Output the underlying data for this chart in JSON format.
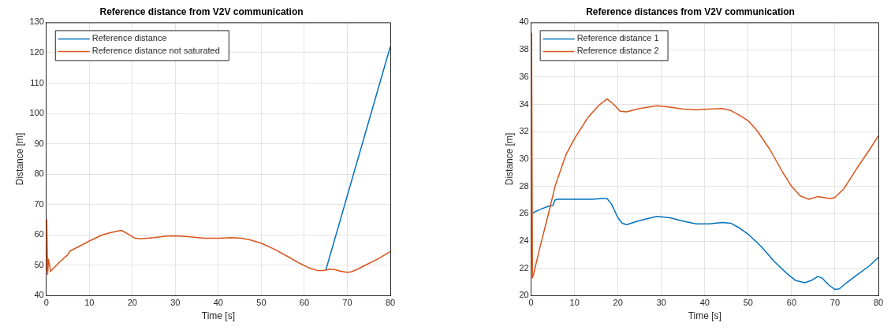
{
  "chart_data": [
    {
      "type": "line",
      "title": "Reference distance from V2V communication",
      "xlabel": "Time [s]",
      "ylabel": "Distance [m]",
      "xlim": [
        0,
        80
      ],
      "xticks": [
        0,
        10,
        20,
        30,
        40,
        50,
        60,
        70,
        80
      ],
      "ylim": [
        40,
        130
      ],
      "yticks": [
        40,
        50,
        60,
        70,
        80,
        90,
        100,
        110,
        120,
        130
      ],
      "grid": true,
      "legend": "top left",
      "series": [
        {
          "name": "Reference distance",
          "color": "#0072bd",
          "x": [
            65,
            80
          ],
          "values": [
            48.4,
            122
          ]
        },
        {
          "name": "Reference distance not saturated",
          "color": "#d95319",
          "x": [
            0,
            0.1,
            0.3,
            0.5,
            1,
            3,
            5,
            5.5,
            8,
            10,
            13,
            15,
            17.5,
            19,
            20.5,
            22,
            25,
            28,
            30,
            33,
            37,
            40,
            43,
            45,
            47,
            50,
            53,
            56,
            59,
            61,
            63,
            64.5,
            66,
            67,
            68.5,
            70,
            71,
            72.5,
            74,
            77,
            80
          ],
          "values": [
            48,
            65,
            47,
            52,
            48,
            51,
            53.5,
            54.7,
            56.5,
            58,
            60,
            60.8,
            61.5,
            60.3,
            59,
            58.7,
            59.1,
            59.6,
            59.7,
            59.4,
            58.9,
            58.9,
            59.1,
            59,
            58.5,
            57.3,
            55.3,
            53,
            50.6,
            49.2,
            48.3,
            48.3,
            48.7,
            48.6,
            48,
            47.7,
            47.9,
            48.8,
            49.9,
            52,
            54.5
          ]
        }
      ]
    },
    {
      "type": "line",
      "title": "Reference distances from V2V communication",
      "xlabel": "Time [s]",
      "ylabel": "Distance [m]",
      "xlim": [
        0,
        80
      ],
      "xticks": [
        0,
        10,
        20,
        30,
        40,
        50,
        60,
        70,
        80
      ],
      "ylim": [
        20,
        40
      ],
      "yticks": [
        20,
        22,
        24,
        26,
        28,
        30,
        32,
        34,
        36,
        38,
        40
      ],
      "grid": true,
      "legend": "top left",
      "series": [
        {
          "name": "Reference distance 1",
          "color": "#0072bd",
          "x": [
            0,
            2,
            4,
            5,
            5.5,
            6,
            10,
            14,
            16,
            17.5,
            18.5,
            20,
            21,
            22,
            25,
            29,
            32,
            35,
            38,
            41,
            44,
            46,
            48,
            50,
            53,
            56,
            59,
            61,
            63,
            64.5,
            66,
            67,
            68.5,
            70,
            71,
            72.5,
            75,
            78,
            80
          ],
          "values": [
            26,
            26.3,
            26.55,
            26.6,
            27,
            27.05,
            27.05,
            27.05,
            27.1,
            27.1,
            26.7,
            25.7,
            25.3,
            25.2,
            25.5,
            25.8,
            25.7,
            25.45,
            25.25,
            25.25,
            25.35,
            25.3,
            24.95,
            24.5,
            23.6,
            22.5,
            21.6,
            21.1,
            20.95,
            21.1,
            21.4,
            21.3,
            20.8,
            20.45,
            20.5,
            20.9,
            21.5,
            22.2,
            22.8
          ]
        },
        {
          "name": "Reference distance 2",
          "color": "#d95319",
          "x": [
            0,
            0.1,
            0.3,
            0.5,
            2,
            4,
            5.5,
            8,
            10,
            13,
            15.5,
            17.5,
            19,
            20.5,
            22,
            25,
            29,
            32,
            35,
            38,
            41,
            44,
            46,
            48,
            50,
            52,
            55,
            58,
            60,
            62,
            64,
            66,
            67,
            69,
            70,
            72,
            75,
            78,
            80
          ],
          "values": [
            22,
            39.2,
            21.3,
            21.5,
            23.5,
            26,
            28,
            30.3,
            31.5,
            33,
            33.9,
            34.4,
            34,
            33.5,
            33.45,
            33.7,
            33.9,
            33.8,
            33.65,
            33.6,
            33.65,
            33.7,
            33.55,
            33.2,
            32.8,
            32.1,
            30.7,
            29,
            28,
            27.3,
            27.05,
            27.25,
            27.2,
            27.1,
            27.2,
            27.8,
            29.3,
            30.7,
            31.7
          ]
        }
      ]
    }
  ]
}
